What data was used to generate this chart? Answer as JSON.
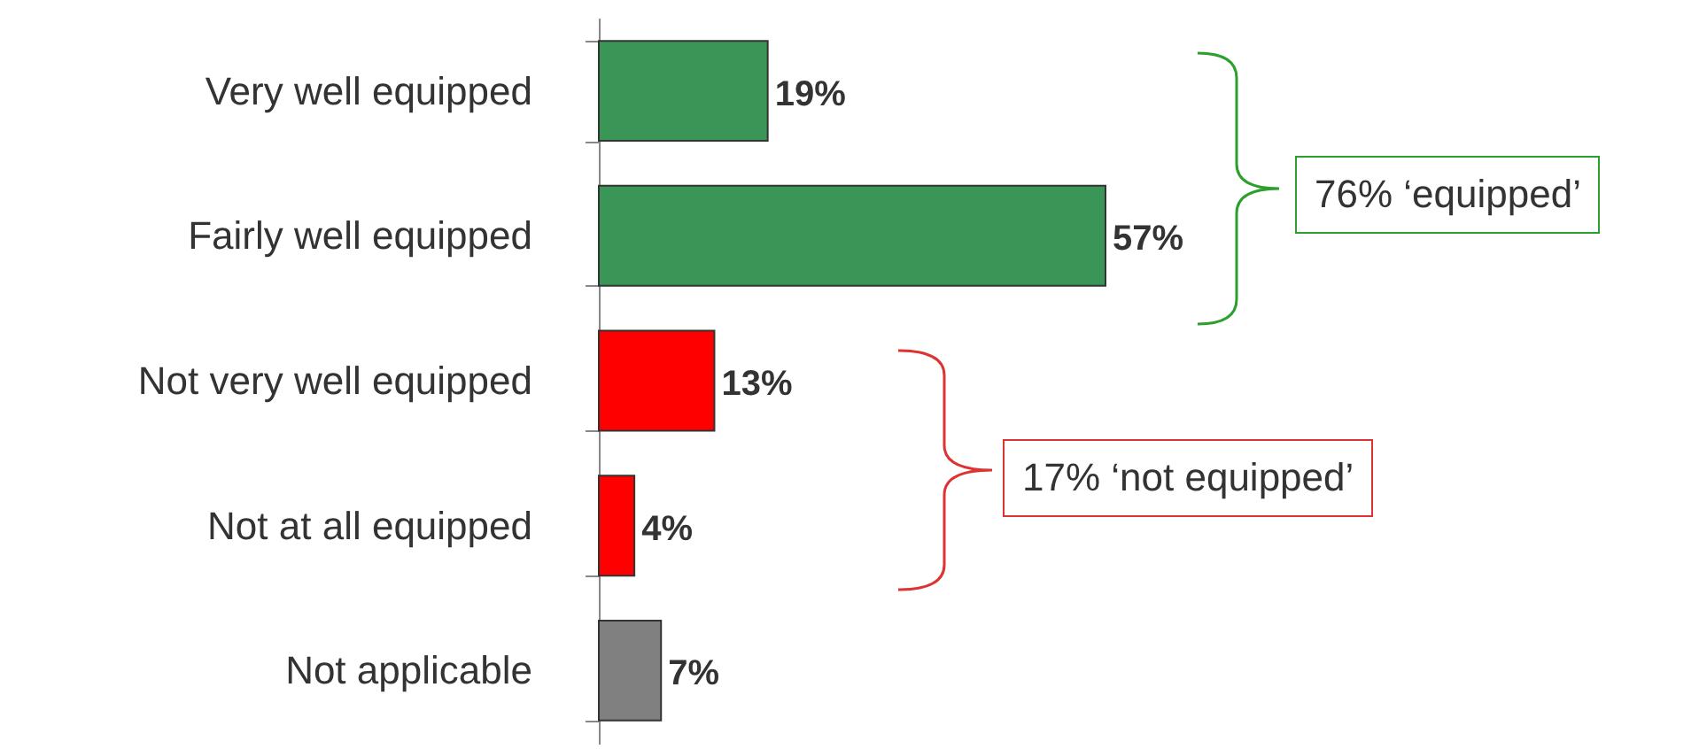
{
  "chart_data": {
    "type": "bar",
    "orientation": "horizontal",
    "categories": [
      "Very well equipped",
      "Fairly well equipped",
      "Not very well equipped",
      "Not at all equipped",
      "Not applicable"
    ],
    "values": [
      19,
      57,
      13,
      4,
      7
    ],
    "colors": [
      "#3a9657",
      "#3a9657",
      "#ff0000",
      "#ff0000",
      "#808080"
    ],
    "value_labels": [
      "19%",
      "57%",
      "13%",
      "4%",
      "7%"
    ],
    "annotations": [
      "76% ‘equipped’",
      "17% ‘not equipped’"
    ]
  }
}
